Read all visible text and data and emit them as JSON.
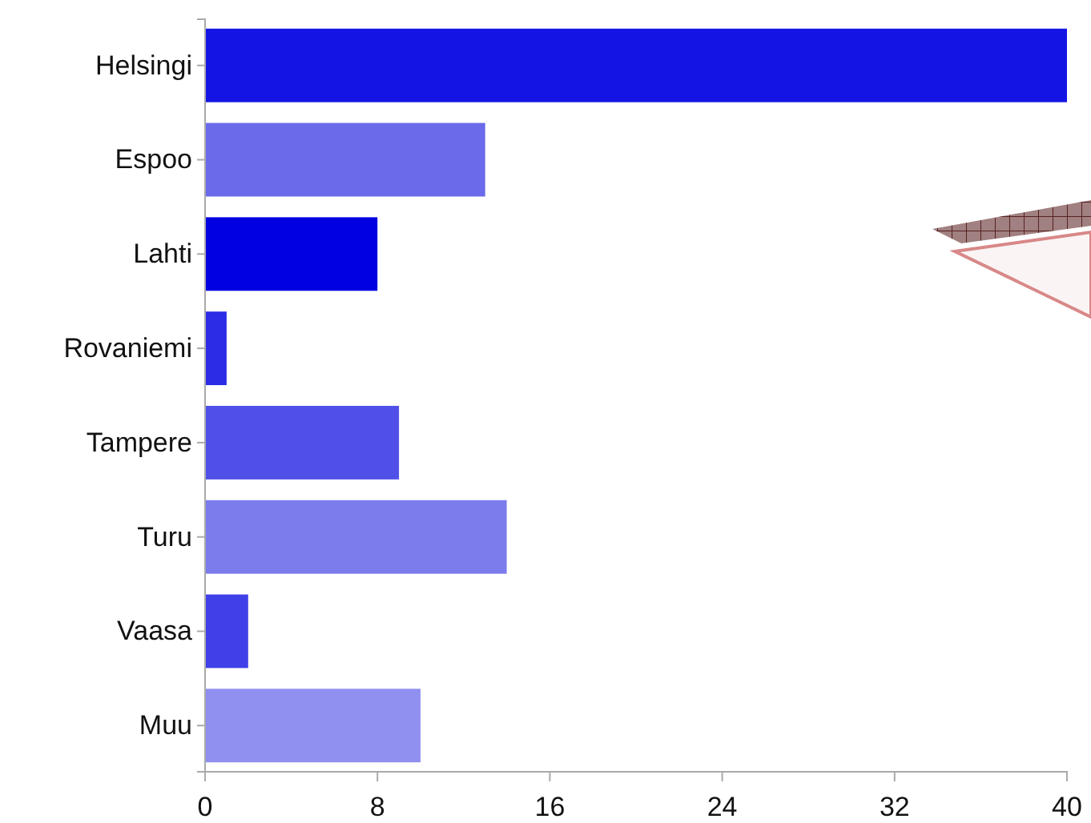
{
  "chart_data": {
    "type": "bar",
    "orientation": "horizontal",
    "categories": [
      "Helsingi",
      "Espoo",
      "Lahti",
      "Rovaniemi",
      "Tampere",
      "Turu",
      "Vaasa",
      "Muu"
    ],
    "values": [
      40,
      13,
      8,
      1,
      9,
      14,
      2,
      10
    ],
    "colors": [
      "#1414e4",
      "#6a6aea",
      "#0000e0",
      "#2c2ce6",
      "#5050e8",
      "#7c7cec",
      "#4040e8",
      "#9090f0"
    ],
    "xlim": [
      0,
      40
    ],
    "xticks": [
      0,
      8,
      16,
      24,
      32,
      40
    ],
    "grid": false
  }
}
